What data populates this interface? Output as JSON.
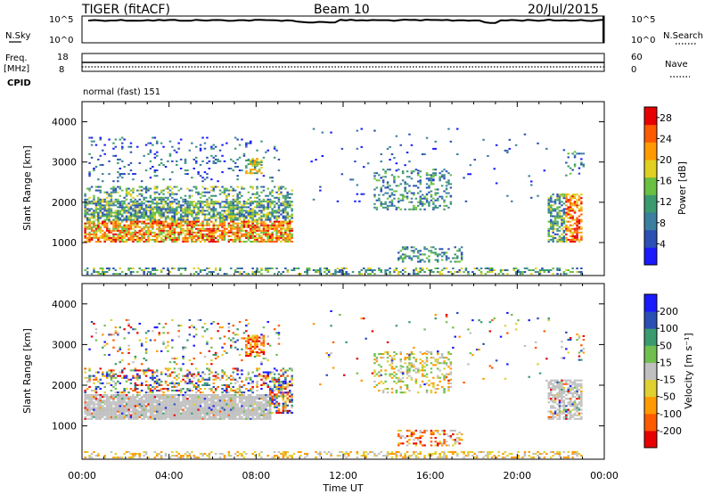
{
  "header": {
    "radar": "TIGER (fitACF)",
    "beam": "Beam 10",
    "date": "20/Jul/2015"
  },
  "nsky_panel": {
    "left_label": "N.Sky",
    "right_label": "N.Search",
    "tick_top": "10^5",
    "tick_bottom": "10^0"
  },
  "freq_panel": {
    "left_label_line1": "Freq.",
    "left_label_line2": "[MHz]",
    "right_label": "Nave",
    "left_ticks": [
      "18",
      "8"
    ],
    "right_ticks": [
      "60",
      "0"
    ]
  },
  "cpid_panel": {
    "label": "CPID",
    "text": "normal (fast) 151"
  },
  "colors": {
    "power_scale": [
      "#1a1aff",
      "#2a4fb5",
      "#3a7fa0",
      "#3a9a70",
      "#6ac040",
      "#e0d020",
      "#ff9a00",
      "#ff5a00",
      "#e80000"
    ],
    "velocity_scale": [
      "#e80000",
      "#ff5a00",
      "#ff9a00",
      "#e0d030",
      "#c0c0c0",
      "#70c050",
      "#3a9a70",
      "#2a4fb5",
      "#1a1aff"
    ]
  },
  "chart_data": [
    {
      "type": "heatmap",
      "title": "Power",
      "ylabel": "Slant Range [km]",
      "xlabel": "",
      "x_ticks": [
        "00:00",
        "04:00",
        "08:00",
        "12:00",
        "16:00",
        "20:00",
        "00:00"
      ],
      "y_ticks": [
        "1000",
        "2000",
        "3000",
        "4000"
      ],
      "ylim": [
        180,
        4500
      ],
      "colorbar_label": "Power [dB]",
      "colorbar_ticks": [
        "4",
        "8",
        "12",
        "16",
        "20",
        "24",
        "28"
      ],
      "colorbar_range": [
        0,
        30
      ]
    },
    {
      "type": "heatmap",
      "title": "Velocity",
      "ylabel": "Slant Range [km]",
      "xlabel": "Time UT",
      "x_ticks": [
        "00:00",
        "04:00",
        "08:00",
        "12:00",
        "16:00",
        "20:00",
        "00:00"
      ],
      "y_ticks": [
        "1000",
        "2000",
        "3000",
        "4000"
      ],
      "ylim": [
        180,
        4500
      ],
      "colorbar_label": "Velocity [m s⁻¹]",
      "colorbar_ticks": [
        "-200",
        "-100",
        "-50",
        "-15",
        "15",
        "50",
        "100",
        "200"
      ],
      "colorbar_range": [
        -250,
        250
      ]
    }
  ]
}
